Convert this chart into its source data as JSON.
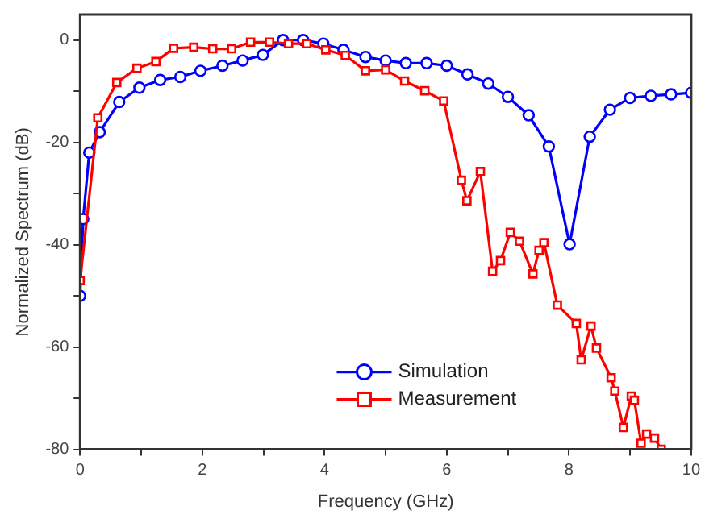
{
  "chart_data": {
    "type": "line",
    "xlabel": "Frequency (GHz)",
    "ylabel": "Normalized Spectrum (dB)",
    "xlim": [
      0,
      10
    ],
    "xticks": [
      0,
      2,
      4,
      6,
      8,
      10
    ],
    "ylim": [
      -80,
      5
    ],
    "yticks": [
      -80,
      -60,
      -40,
      -20,
      0
    ],
    "grid": false,
    "legend": "bottom",
    "line_style": "solid",
    "series": [
      {
        "name": "Simulation",
        "color": "#0000ff",
        "marker": "circle",
        "x": [
          0,
          0.05,
          0.15,
          0.32,
          0.64,
          0.97,
          1.31,
          1.64,
          1.97,
          2.33,
          2.66,
          2.99,
          3.32,
          3.65,
          3.98,
          4.31,
          4.67,
          5.0,
          5.33,
          5.67,
          6.0,
          6.34,
          6.68,
          7.0,
          7.34,
          7.67,
          8.01,
          8.34,
          8.67,
          9.0,
          9.34,
          9.67,
          10.0
        ],
        "values": [
          -50,
          -35,
          -22,
          -18,
          -12.1,
          -9.3,
          -7.8,
          -7.2,
          -6,
          -5,
          -4,
          -2.9,
          0,
          0,
          -0.7,
          -1.9,
          -3.3,
          -4,
          -4.5,
          -4.5,
          -5,
          -6.7,
          -8.5,
          -11.1,
          -14.7,
          -20.8,
          -39.9,
          -18.9,
          -13.6,
          -11.3,
          -10.9,
          -10.6,
          -10.3
        ]
      },
      {
        "name": "Measurement",
        "color": "#ff0000",
        "marker": "square",
        "x": [
          0,
          0.29,
          0.6,
          0.93,
          1.24,
          1.53,
          1.86,
          2.17,
          2.48,
          2.79,
          3.1,
          3.41,
          3.71,
          4.02,
          4.34,
          4.67,
          5.0,
          5.31,
          5.64,
          5.95,
          6.24,
          6.33,
          6.55,
          6.75,
          6.88,
          7.04,
          7.19,
          7.41,
          7.51,
          7.59,
          7.81,
          8.12,
          8.2,
          8.36,
          8.45,
          8.69,
          8.75,
          8.89,
          9.02,
          9.07,
          9.18,
          9.27,
          9.4,
          9.51
        ],
        "values": [
          -47,
          -15.2,
          -8.3,
          -5.5,
          -4.2,
          -1.6,
          -1.4,
          -1.7,
          -1.7,
          -0.4,
          -0.4,
          -0.7,
          -0.7,
          -1.9,
          -3,
          -6,
          -5.8,
          -8,
          -9.9,
          -11.9,
          -27.4,
          -31.4,
          -25.7,
          -45.2,
          -43.1,
          -37.6,
          -39.3,
          -45.7,
          -41.1,
          -39.6,
          -51.8,
          -55.4,
          -62.5,
          -55.9,
          -60.2,
          -66,
          -68.6,
          -75.7,
          -69.6,
          -70.4,
          -78.8,
          -77,
          -77.8,
          -80
        ]
      }
    ]
  }
}
